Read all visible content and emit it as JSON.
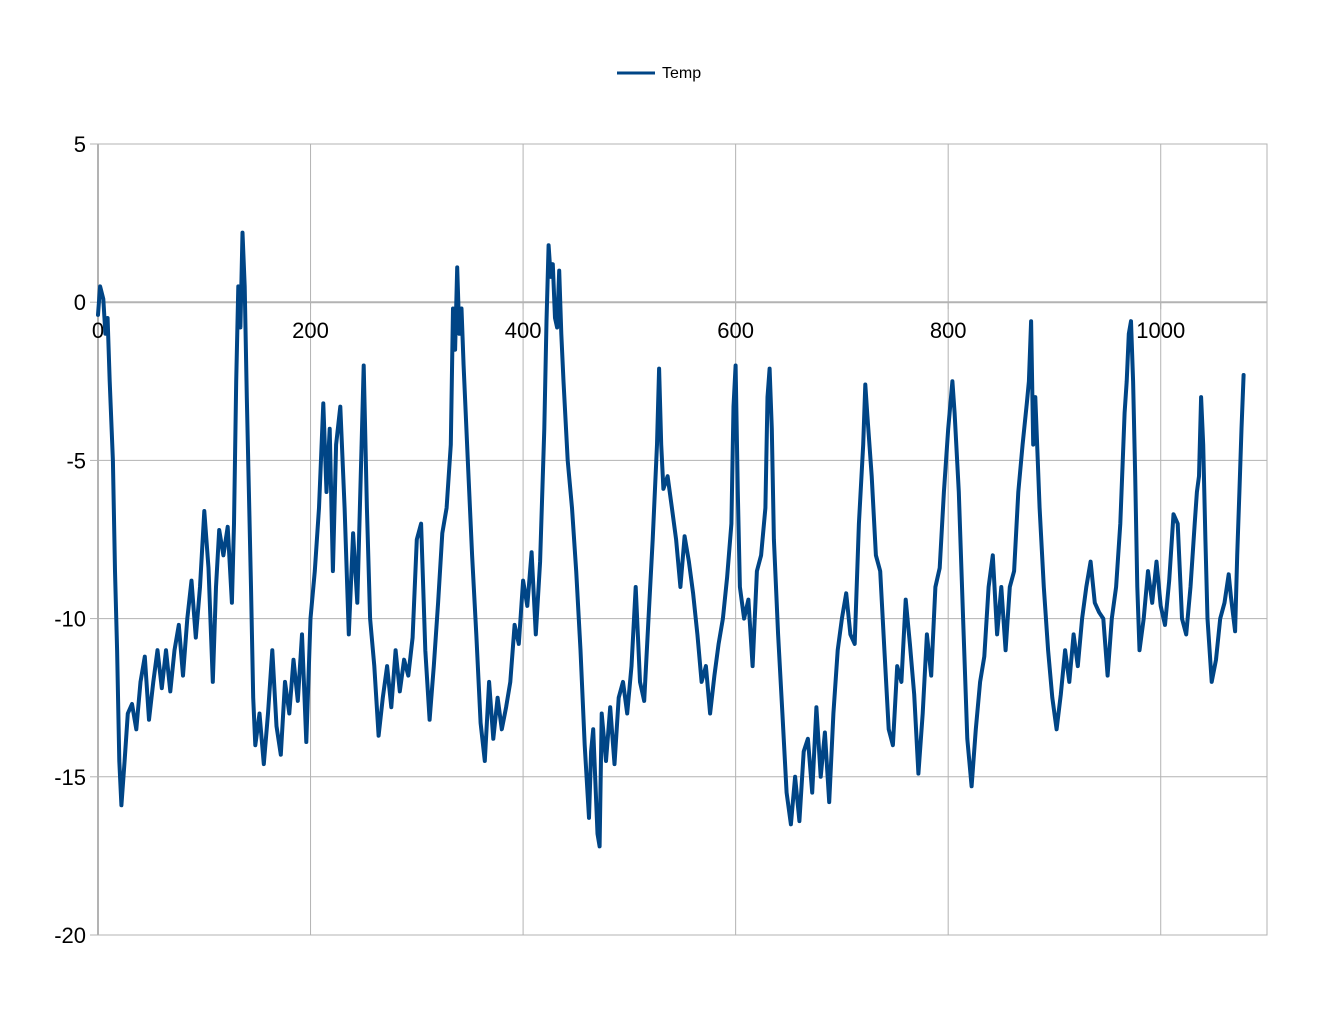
{
  "chart_data": {
    "type": "line",
    "title": "",
    "xlabel": "",
    "ylabel": "",
    "xlim": [
      0,
      1100
    ],
    "ylim": [
      -20,
      5
    ],
    "x_ticks": [
      0,
      200,
      400,
      600,
      800,
      1000
    ],
    "x_tick_labels": [
      "0",
      "200",
      "400",
      "600",
      "800",
      "1000"
    ],
    "y_ticks": [
      5,
      0,
      -5,
      -10,
      -15,
      -20
    ],
    "y_tick_labels": [
      "5",
      "0",
      "-5",
      "-10",
      "-15",
      "-20"
    ],
    "grid": true,
    "legend": {
      "position": "top-center"
    },
    "series": [
      {
        "name": "Temp",
        "color": "#004586",
        "points": [
          [
            0,
            -0.4
          ],
          [
            2,
            0.5
          ],
          [
            5,
            0.1
          ],
          [
            7,
            -1.0
          ],
          [
            9,
            -0.5
          ],
          [
            11,
            -2.5
          ],
          [
            14,
            -5.0
          ],
          [
            16,
            -8.5
          ],
          [
            18,
            -11.0
          ],
          [
            20,
            -14.5
          ],
          [
            22,
            -15.9
          ],
          [
            25,
            -14.5
          ],
          [
            28,
            -13.0
          ],
          [
            32,
            -12.7
          ],
          [
            36,
            -13.5
          ],
          [
            40,
            -12.0
          ],
          [
            44,
            -11.2
          ],
          [
            48,
            -13.2
          ],
          [
            52,
            -12.0
          ],
          [
            56,
            -11.0
          ],
          [
            60,
            -12.2
          ],
          [
            64,
            -11.0
          ],
          [
            68,
            -12.3
          ],
          [
            72,
            -11.0
          ],
          [
            76,
            -10.2
          ],
          [
            80,
            -11.8
          ],
          [
            84,
            -10.0
          ],
          [
            88,
            -8.8
          ],
          [
            92,
            -10.6
          ],
          [
            96,
            -9.0
          ],
          [
            100,
            -6.6
          ],
          [
            104,
            -8.4
          ],
          [
            108,
            -12.0
          ],
          [
            111,
            -9.0
          ],
          [
            114,
            -7.2
          ],
          [
            118,
            -8.0
          ],
          [
            122,
            -7.1
          ],
          [
            126,
            -9.5
          ],
          [
            128,
            -7.0
          ],
          [
            130,
            -2.5
          ],
          [
            132,
            0.5
          ],
          [
            134,
            -0.8
          ],
          [
            136,
            2.2
          ],
          [
            138,
            0.5
          ],
          [
            140,
            -3.0
          ],
          [
            142,
            -6.0
          ],
          [
            144,
            -9.0
          ],
          [
            146,
            -12.5
          ],
          [
            148,
            -14.0
          ],
          [
            152,
            -13.0
          ],
          [
            156,
            -14.6
          ],
          [
            160,
            -13.0
          ],
          [
            164,
            -11.0
          ],
          [
            168,
            -13.4
          ],
          [
            172,
            -14.3
          ],
          [
            176,
            -12.0
          ],
          [
            180,
            -13.0
          ],
          [
            184,
            -11.3
          ],
          [
            188,
            -12.6
          ],
          [
            192,
            -10.5
          ],
          [
            196,
            -13.9
          ],
          [
            200,
            -10.0
          ],
          [
            204,
            -8.5
          ],
          [
            208,
            -6.5
          ],
          [
            212,
            -3.2
          ],
          [
            215,
            -6.0
          ],
          [
            218,
            -4.0
          ],
          [
            221,
            -8.5
          ],
          [
            224,
            -4.5
          ],
          [
            228,
            -3.3
          ],
          [
            232,
            -6.5
          ],
          [
            236,
            -10.5
          ],
          [
            240,
            -7.3
          ],
          [
            244,
            -9.5
          ],
          [
            248,
            -4.5
          ],
          [
            250,
            -2.0
          ],
          [
            253,
            -6.5
          ],
          [
            256,
            -10.0
          ],
          [
            260,
            -11.5
          ],
          [
            264,
            -13.7
          ],
          [
            268,
            -12.5
          ],
          [
            272,
            -11.5
          ],
          [
            276,
            -12.8
          ],
          [
            280,
            -11.0
          ],
          [
            284,
            -12.3
          ],
          [
            288,
            -11.3
          ],
          [
            292,
            -11.8
          ],
          [
            296,
            -10.6
          ],
          [
            300,
            -7.5
          ],
          [
            304,
            -7.0
          ],
          [
            308,
            -11.0
          ],
          [
            312,
            -13.2
          ],
          [
            316,
            -11.5
          ],
          [
            320,
            -9.5
          ],
          [
            324,
            -7.3
          ],
          [
            328,
            -6.5
          ],
          [
            332,
            -4.5
          ],
          [
            334,
            -0.2
          ],
          [
            336,
            -1.5
          ],
          [
            338,
            1.1
          ],
          [
            340,
            -1.0
          ],
          [
            342,
            -0.2
          ],
          [
            344,
            -2.0
          ],
          [
            348,
            -5.0
          ],
          [
            352,
            -8.0
          ],
          [
            356,
            -10.5
          ],
          [
            360,
            -13.3
          ],
          [
            364,
            -14.5
          ],
          [
            368,
            -12.0
          ],
          [
            372,
            -13.8
          ],
          [
            376,
            -12.5
          ],
          [
            380,
            -13.5
          ],
          [
            384,
            -12.8
          ],
          [
            388,
            -12.0
          ],
          [
            392,
            -10.2
          ],
          [
            396,
            -10.8
          ],
          [
            400,
            -8.8
          ],
          [
            404,
            -9.6
          ],
          [
            408,
            -7.9
          ],
          [
            412,
            -10.5
          ],
          [
            416,
            -8.2
          ],
          [
            420,
            -4.0
          ],
          [
            422,
            -0.6
          ],
          [
            424,
            1.8
          ],
          [
            426,
            0.8
          ],
          [
            428,
            1.2
          ],
          [
            430,
            -0.5
          ],
          [
            432,
            -0.8
          ],
          [
            434,
            1.0
          ],
          [
            436,
            -1.0
          ],
          [
            438,
            -2.5
          ],
          [
            442,
            -5.0
          ],
          [
            446,
            -6.5
          ],
          [
            450,
            -8.5
          ],
          [
            454,
            -11.0
          ],
          [
            458,
            -14.0
          ],
          [
            462,
            -16.3
          ],
          [
            464,
            -14.2
          ],
          [
            466,
            -13.5
          ],
          [
            470,
            -16.8
          ],
          [
            472,
            -17.2
          ],
          [
            474,
            -13.0
          ],
          [
            478,
            -14.5
          ],
          [
            482,
            -12.8
          ],
          [
            486,
            -14.6
          ],
          [
            490,
            -12.5
          ],
          [
            494,
            -12.0
          ],
          [
            498,
            -13.0
          ],
          [
            502,
            -11.5
          ],
          [
            506,
            -9.0
          ],
          [
            510,
            -12.0
          ],
          [
            514,
            -12.6
          ],
          [
            518,
            -10.0
          ],
          [
            522,
            -7.5
          ],
          [
            526,
            -4.5
          ],
          [
            528,
            -2.1
          ],
          [
            530,
            -4.5
          ],
          [
            532,
            -5.9
          ],
          [
            536,
            -5.5
          ],
          [
            540,
            -6.5
          ],
          [
            544,
            -7.5
          ],
          [
            548,
            -9.0
          ],
          [
            552,
            -7.4
          ],
          [
            556,
            -8.2
          ],
          [
            560,
            -9.2
          ],
          [
            564,
            -10.5
          ],
          [
            568,
            -12.0
          ],
          [
            572,
            -11.5
          ],
          [
            576,
            -13.0
          ],
          [
            580,
            -11.8
          ],
          [
            584,
            -10.8
          ],
          [
            588,
            -10.0
          ],
          [
            592,
            -8.7
          ],
          [
            596,
            -7.0
          ],
          [
            598,
            -3.3
          ],
          [
            600,
            -2.0
          ],
          [
            602,
            -6.0
          ],
          [
            604,
            -9.0
          ],
          [
            608,
            -10.0
          ],
          [
            612,
            -9.4
          ],
          [
            616,
            -11.5
          ],
          [
            620,
            -8.5
          ],
          [
            624,
            -8.0
          ],
          [
            628,
            -6.5
          ],
          [
            630,
            -3.0
          ],
          [
            632,
            -2.1
          ],
          [
            634,
            -4.0
          ],
          [
            636,
            -7.5
          ],
          [
            640,
            -10.5
          ],
          [
            644,
            -13.0
          ],
          [
            648,
            -15.5
          ],
          [
            652,
            -16.5
          ],
          [
            656,
            -15.0
          ],
          [
            660,
            -16.4
          ],
          [
            664,
            -14.2
          ],
          [
            668,
            -13.8
          ],
          [
            672,
            -15.5
          ],
          [
            676,
            -12.8
          ],
          [
            680,
            -15.0
          ],
          [
            684,
            -13.6
          ],
          [
            688,
            -15.8
          ],
          [
            692,
            -13.0
          ],
          [
            696,
            -11.0
          ],
          [
            700,
            -10.0
          ],
          [
            704,
            -9.2
          ],
          [
            708,
            -10.5
          ],
          [
            712,
            -10.8
          ],
          [
            716,
            -7.0
          ],
          [
            720,
            -4.5
          ],
          [
            722,
            -2.6
          ],
          [
            724,
            -3.6
          ],
          [
            728,
            -5.5
          ],
          [
            732,
            -8.0
          ],
          [
            736,
            -8.5
          ],
          [
            740,
            -11.0
          ],
          [
            744,
            -13.5
          ],
          [
            748,
            -14.0
          ],
          [
            752,
            -11.5
          ],
          [
            756,
            -12.0
          ],
          [
            760,
            -9.4
          ],
          [
            764,
            -10.8
          ],
          [
            768,
            -12.4
          ],
          [
            772,
            -14.9
          ],
          [
            776,
            -13.0
          ],
          [
            780,
            -10.5
          ],
          [
            784,
            -11.8
          ],
          [
            788,
            -9.0
          ],
          [
            792,
            -8.4
          ],
          [
            796,
            -6.0
          ],
          [
            800,
            -4.0
          ],
          [
            804,
            -2.5
          ],
          [
            806,
            -3.5
          ],
          [
            810,
            -6.0
          ],
          [
            814,
            -10.0
          ],
          [
            818,
            -13.8
          ],
          [
            822,
            -15.3
          ],
          [
            826,
            -13.5
          ],
          [
            830,
            -12.0
          ],
          [
            834,
            -11.2
          ],
          [
            838,
            -9.0
          ],
          [
            842,
            -8.0
          ],
          [
            846,
            -10.5
          ],
          [
            850,
            -9.0
          ],
          [
            854,
            -11.0
          ],
          [
            858,
            -9.0
          ],
          [
            862,
            -8.5
          ],
          [
            866,
            -6.0
          ],
          [
            870,
            -4.5
          ],
          [
            874,
            -3.2
          ],
          [
            876,
            -2.5
          ],
          [
            878,
            -0.6
          ],
          [
            880,
            -4.5
          ],
          [
            882,
            -3.0
          ],
          [
            886,
            -6.5
          ],
          [
            890,
            -9.0
          ],
          [
            894,
            -11.0
          ],
          [
            898,
            -12.5
          ],
          [
            902,
            -13.5
          ],
          [
            906,
            -12.4
          ],
          [
            910,
            -11.0
          ],
          [
            914,
            -12.0
          ],
          [
            918,
            -10.5
          ],
          [
            922,
            -11.5
          ],
          [
            926,
            -10.0
          ],
          [
            930,
            -9.0
          ],
          [
            934,
            -8.2
          ],
          [
            938,
            -9.5
          ],
          [
            942,
            -9.8
          ],
          [
            946,
            -10.0
          ],
          [
            950,
            -11.8
          ],
          [
            954,
            -10.0
          ],
          [
            958,
            -9.0
          ],
          [
            962,
            -7.0
          ],
          [
            966,
            -3.5
          ],
          [
            968,
            -2.5
          ],
          [
            970,
            -1.0
          ],
          [
            972,
            -0.6
          ],
          [
            974,
            -2.5
          ],
          [
            976,
            -5.5
          ],
          [
            978,
            -9.0
          ],
          [
            980,
            -11.0
          ],
          [
            984,
            -10.0
          ],
          [
            988,
            -8.5
          ],
          [
            992,
            -9.5
          ],
          [
            996,
            -8.2
          ],
          [
            1000,
            -9.6
          ],
          [
            1004,
            -10.2
          ],
          [
            1008,
            -8.8
          ],
          [
            1012,
            -6.7
          ],
          [
            1016,
            -7.0
          ],
          [
            1020,
            -10.0
          ],
          [
            1024,
            -10.5
          ],
          [
            1028,
            -9.0
          ],
          [
            1032,
            -7.0
          ],
          [
            1034,
            -6.0
          ],
          [
            1036,
            -5.5
          ],
          [
            1038,
            -3.0
          ],
          [
            1040,
            -4.5
          ],
          [
            1042,
            -7.5
          ],
          [
            1044,
            -10.0
          ],
          [
            1048,
            -12.0
          ],
          [
            1052,
            -11.3
          ],
          [
            1056,
            -10.0
          ],
          [
            1060,
            -9.5
          ],
          [
            1064,
            -8.6
          ],
          [
            1066,
            -9.3
          ],
          [
            1070,
            -10.4
          ],
          [
            1072,
            -8.0
          ],
          [
            1074,
            -6.0
          ],
          [
            1076,
            -4.0
          ],
          [
            1078,
            -2.3
          ]
        ]
      }
    ]
  }
}
